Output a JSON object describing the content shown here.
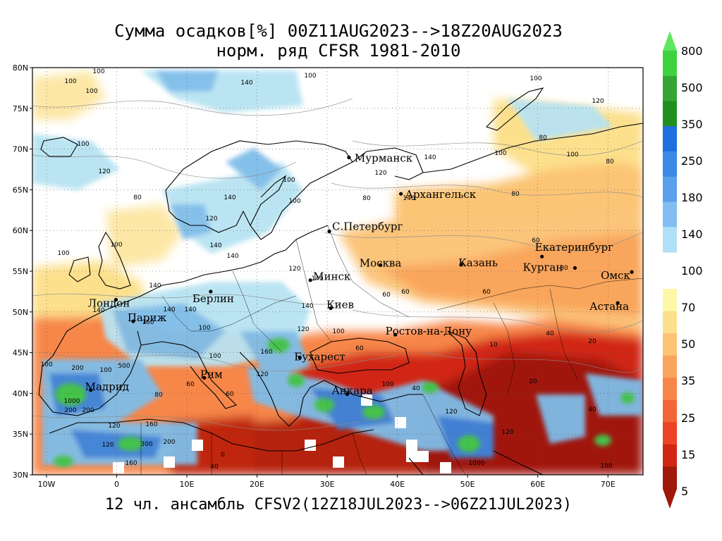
{
  "title": {
    "line1": "Сумма осадков[%] 00Z11AUG2023-->18Z20AUG2023",
    "line2": "норм. ряд CFSR 1981-2010"
  },
  "footer": "12 чл. ансамбль CFSV2(12Z18JUL2023-->06Z21JUL2023)",
  "map": {
    "lat_labels": [
      "80N",
      "75N",
      "70N",
      "65N",
      "60N",
      "55N",
      "50N",
      "45N",
      "40N",
      "35N",
      "30N"
    ],
    "lon_labels": [
      "10W",
      "0",
      "10E",
      "20E",
      "30E",
      "40E",
      "50E",
      "60E",
      "70E"
    ],
    "lat_range": [
      30,
      80
    ],
    "lon_range": [
      -12,
      75
    ],
    "cities": [
      {
        "name": "Мурманск",
        "lon": 33.1,
        "lat": 68.97
      },
      {
        "name": "Архангельск",
        "lon": 40.5,
        "lat": 64.5
      },
      {
        "name": "С.Петербург",
        "lon": 30.3,
        "lat": 59.9
      },
      {
        "name": "Москва",
        "lon": 37.6,
        "lat": 55.75
      },
      {
        "name": "Казань",
        "lon": 49.1,
        "lat": 55.8
      },
      {
        "name": "Екатеринбург",
        "lon": 60.6,
        "lat": 56.8
      },
      {
        "name": "Курган",
        "lon": 65.3,
        "lat": 55.4
      },
      {
        "name": "Омск",
        "lon": 73.4,
        "lat": 54.9
      },
      {
        "name": "Астана",
        "lon": 71.4,
        "lat": 51.1
      },
      {
        "name": "Минск",
        "lon": 27.6,
        "lat": 53.9
      },
      {
        "name": "Берлин",
        "lon": 13.4,
        "lat": 52.5
      },
      {
        "name": "Лондон",
        "lon": -0.1,
        "lat": 51.5
      },
      {
        "name": "Париж",
        "lon": 2.35,
        "lat": 48.85
      },
      {
        "name": "Киев",
        "lon": 30.5,
        "lat": 50.45
      },
      {
        "name": "Ростов-на-Дону",
        "lon": 39.7,
        "lat": 47.2
      },
      {
        "name": "Бухарест",
        "lon": 26.1,
        "lat": 44.4
      },
      {
        "name": "Рим",
        "lon": 12.5,
        "lat": 41.9
      },
      {
        "name": "Мадрид",
        "lon": -3.7,
        "lat": 40.4
      },
      {
        "name": "Анкара",
        "lon": 32.85,
        "lat": 39.9
      }
    ],
    "contour_labels": [
      "100",
      "120",
      "140",
      "80",
      "60",
      "40",
      "20",
      "10",
      "160",
      "200",
      "300",
      "500",
      "1000",
      "0"
    ]
  },
  "colorbar": {
    "labels": [
      "800",
      "500",
      "350",
      "250",
      "180",
      "140",
      "100",
      "70",
      "50",
      "35",
      "25",
      "15",
      "5"
    ],
    "colors_high": [
      "#3fd23f",
      "#33a633",
      "#1f8f1f",
      "#1f6fe0",
      "#3b8ae6",
      "#5aa0ea",
      "#82bef2",
      "#b0e0f5"
    ],
    "colors_low": [
      "#fff7a8",
      "#fde08c",
      "#fcc474",
      "#f9a55c",
      "#f7864a",
      "#f26638",
      "#ec4424",
      "#d12612",
      "#a01808"
    ]
  },
  "colors": {
    "wet_light": "#b8e3f2",
    "wet_mid": "#7fbde9",
    "wet_blue": "#3d86de",
    "wet_green": "#45c24a",
    "dry_light": "#fde7a6",
    "dry_mid": "#fbc57a",
    "dry_orange": "#f58b4c",
    "dry_red": "#e24a26",
    "dry_dark": "#b5200a",
    "normal": "#ffffff"
  }
}
